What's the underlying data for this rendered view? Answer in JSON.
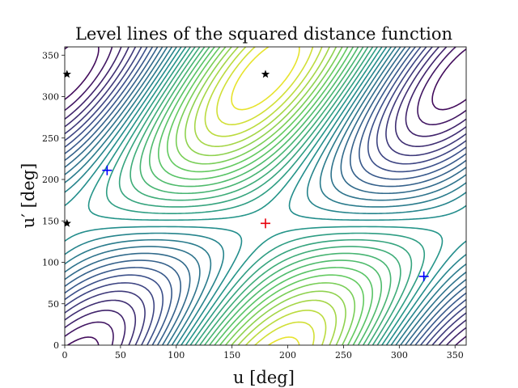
{
  "chart_data": {
    "type": "contour",
    "title": "Level lines of the squared distance function",
    "xlabel": "u [deg]",
    "ylabel": "u′ [deg]",
    "xlim": [
      0,
      360
    ],
    "ylim": [
      0,
      360
    ],
    "xticks": [
      0,
      50,
      100,
      150,
      200,
      250,
      300,
      350
    ],
    "yticks": [
      0,
      50,
      100,
      150,
      200,
      250,
      300,
      350
    ],
    "grid": false,
    "colormap": [
      "#440154",
      "#3b528b",
      "#21918c",
      "#5ec962",
      "#fde725"
    ],
    "contour_levels": 28,
    "maximum": {
      "x": 180,
      "y": 147,
      "color": "#e8000b"
    },
    "minima": [
      {
        "x": 38,
        "y": 211,
        "color": "#0000ff"
      },
      {
        "x": 322,
        "y": 83,
        "color": "#0000ff"
      }
    ],
    "saddles": [
      {
        "x": 180,
        "y": 327,
        "color": "#000000"
      },
      {
        "x": 2,
        "y": 327,
        "color": "#000000"
      },
      {
        "x": 2,
        "y": 147,
        "color": "#000000"
      }
    ]
  }
}
